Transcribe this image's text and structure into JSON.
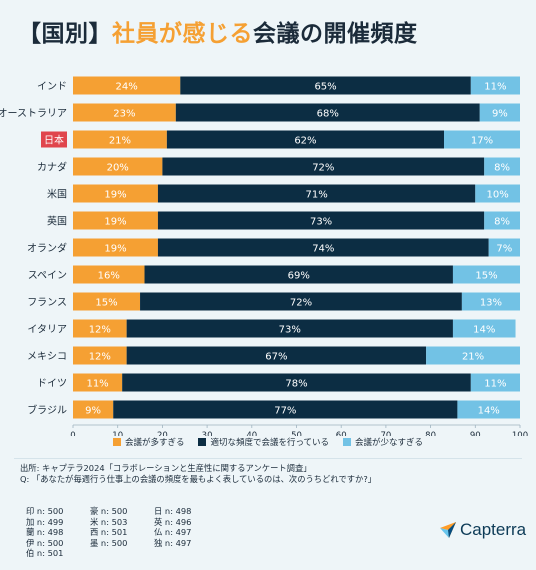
{
  "header": {
    "bracket_label": "【国別】",
    "accent": "社員が感じる",
    "rest": "会議の開催頻度"
  },
  "colors": {
    "too_many": "#f5a033",
    "appropriate": "#0c2d43",
    "too_few": "#72c2e5",
    "highlight_label_bg": "#e0454d"
  },
  "chart_data": {
    "type": "bar",
    "orientation": "horizontal-stacked",
    "categories": [
      "インド",
      "オーストラリア",
      "日本",
      "カナダ",
      "米国",
      "英国",
      "オランダ",
      "スペイン",
      "フランス",
      "イタリア",
      "メキシコ",
      "ドイツ",
      "ブラジル"
    ],
    "highlight_category": "日本",
    "series": [
      {
        "name": "会議が多すぎる",
        "values": [
          24,
          23,
          21,
          20,
          19,
          19,
          19,
          16,
          15,
          12,
          12,
          11,
          9
        ]
      },
      {
        "name": "適切な頻度で会議を行っている",
        "values": [
          65,
          68,
          62,
          72,
          71,
          73,
          74,
          69,
          72,
          73,
          67,
          78,
          77
        ]
      },
      {
        "name": "会議が少なすぎる",
        "values": [
          11,
          9,
          17,
          8,
          10,
          8,
          7,
          15,
          13,
          14,
          21,
          11,
          14
        ]
      }
    ],
    "x_ticks": [
      0,
      10,
      20,
      30,
      40,
      50,
      60,
      70,
      80,
      90,
      100
    ],
    "xlim": [
      0,
      100
    ],
    "value_suffix": "%",
    "grid": false,
    "legend_position": "bottom"
  },
  "footer": {
    "source": "出所: キャプテラ2024「コラボレーションと生産性に関するアンケート調査」",
    "question": "Q: 「あなたが毎週行う仕事上の会議の頻度を最もよく表しているのは、次のうちどれですか?」",
    "samples": [
      "印 n: 500",
      "豪 n: 500",
      "日 n: 498",
      "加 n: 499",
      "米 n: 503",
      "英 n: 496",
      "蘭 n: 498",
      "西 n: 501",
      "仏 n: 497",
      "伊 n: 500",
      "墨 n: 500",
      "独 n: 497",
      "伯 n: 501"
    ]
  },
  "logo": {
    "text": "Capterra"
  }
}
